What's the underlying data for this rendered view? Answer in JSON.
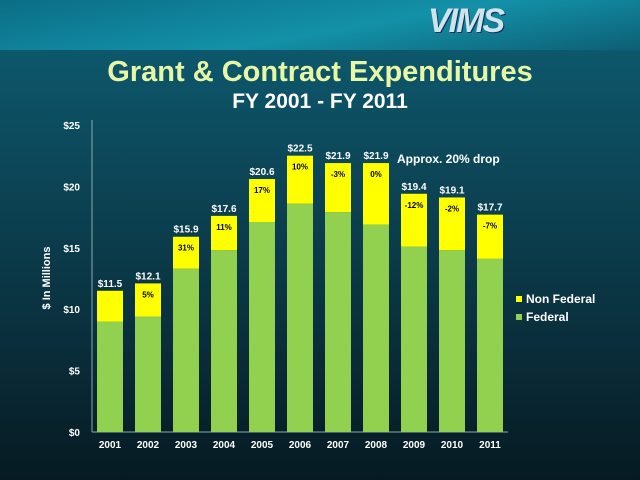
{
  "logo": "VIMS",
  "chart_data": {
    "type": "bar",
    "stacked": true,
    "title": "Grant & Contract Expenditures",
    "subtitle": "FY 2001 - FY 2011",
    "xlabel": "",
    "ylabel": "$ In Millions",
    "ylim": [
      0,
      25
    ],
    "yticks": [
      0,
      5,
      10,
      15,
      20,
      25
    ],
    "ytick_labels": [
      "$0",
      "$5",
      "$10",
      "$15",
      "$20",
      "$25"
    ],
    "categories": [
      "2001",
      "2002",
      "2003",
      "2004",
      "2005",
      "2006",
      "2007",
      "2008",
      "2009",
      "2010",
      "2011"
    ],
    "series": [
      {
        "name": "Federal",
        "color": "#92d050",
        "values": [
          9.0,
          9.4,
          13.3,
          14.8,
          17.1,
          18.6,
          17.9,
          16.9,
          15.1,
          14.8,
          14.1
        ]
      },
      {
        "name": "Non Federal",
        "color": "#ffff00",
        "values": [
          2.5,
          2.7,
          2.6,
          2.8,
          3.5,
          3.9,
          4.0,
          5.0,
          4.3,
          4.3,
          3.6
        ]
      }
    ],
    "total_labels": [
      "$11.5",
      "$12.1",
      "$15.9",
      "$17.6",
      "$20.6",
      "$22.5",
      "$21.9",
      "$21.9",
      "$19.4",
      "$19.1",
      "$17.7"
    ],
    "change_labels": [
      "",
      "5%",
      "31%",
      "11%",
      "17%",
      "10%",
      "-3%",
      "0%",
      "-12%",
      "-2%",
      "-7%"
    ],
    "annotation": "Approx. 20% drop",
    "legend": [
      "Non Federal",
      "Federal"
    ],
    "legend_position": "right",
    "grid": false
  }
}
